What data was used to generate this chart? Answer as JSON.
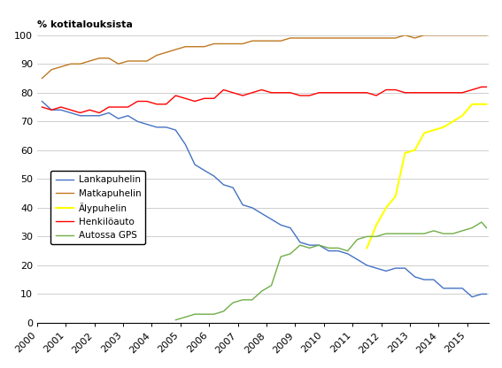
{
  "ylabel": "% kotitalouksista",
  "ylim": [
    0,
    100
  ],
  "yticks": [
    0,
    10,
    20,
    30,
    40,
    50,
    60,
    70,
    80,
    90,
    100
  ],
  "legend_labels": [
    "Lankapuhelin",
    "Matkapuhelin",
    "Älypuhelin",
    "Henkilöauto",
    "Autossa GPS"
  ],
  "line_colors": {
    "Lankapuhelin": "#4472c4",
    "Matkapuhelin": "#c07820",
    "Alypuhelin": "#ffff00",
    "Henkiloauto": "#ff0000",
    "AutossaGPS": "#70ad47"
  },
  "series": {
    "Lankapuhelin": {
      "x": [
        2000.17,
        2000.5,
        2000.83,
        2001.17,
        2001.5,
        2001.83,
        2002.17,
        2002.5,
        2002.83,
        2003.17,
        2003.5,
        2003.83,
        2004.17,
        2004.5,
        2004.83,
        2005.17,
        2005.5,
        2005.83,
        2006.17,
        2006.5,
        2006.83,
        2007.17,
        2007.5,
        2007.83,
        2008.17,
        2008.5,
        2008.83,
        2009.17,
        2009.5,
        2009.83,
        2010.17,
        2010.5,
        2010.83,
        2011.17,
        2011.5,
        2011.83,
        2012.17,
        2012.5,
        2012.83,
        2013.17,
        2013.5,
        2013.83,
        2014.17,
        2014.5,
        2014.83,
        2015.17,
        2015.5,
        2015.67
      ],
      "y": [
        77,
        74,
        74,
        73,
        72,
        72,
        72,
        73,
        71,
        72,
        70,
        69,
        68,
        68,
        67,
        62,
        55,
        53,
        51,
        48,
        47,
        41,
        40,
        38,
        36,
        34,
        33,
        28,
        27,
        27,
        25,
        25,
        24,
        22,
        20,
        19,
        18,
        19,
        19,
        16,
        15,
        15,
        12,
        12,
        12,
        9,
        10,
        10
      ]
    },
    "Matkapuhelin": {
      "x": [
        2000.17,
        2000.5,
        2000.83,
        2001.17,
        2001.5,
        2001.83,
        2002.17,
        2002.5,
        2002.83,
        2003.17,
        2003.5,
        2003.83,
        2004.17,
        2004.5,
        2004.83,
        2005.17,
        2005.5,
        2005.83,
        2006.17,
        2006.5,
        2006.83,
        2007.17,
        2007.5,
        2007.83,
        2008.17,
        2008.5,
        2008.83,
        2009.17,
        2009.5,
        2009.83,
        2010.17,
        2010.5,
        2010.83,
        2011.17,
        2011.5,
        2011.83,
        2012.17,
        2012.5,
        2012.83,
        2013.17,
        2013.5,
        2013.83,
        2014.17,
        2014.5,
        2014.83,
        2015.17,
        2015.5,
        2015.67
      ],
      "y": [
        85,
        88,
        89,
        90,
        90,
        91,
        92,
        92,
        90,
        91,
        91,
        91,
        93,
        94,
        95,
        96,
        96,
        96,
        97,
        97,
        97,
        97,
        98,
        98,
        98,
        98,
        99,
        99,
        99,
        99,
        99,
        99,
        99,
        99,
        99,
        99,
        99,
        99,
        100,
        99,
        100,
        100,
        100,
        100,
        100,
        100,
        100,
        100
      ]
    },
    "Alypuhelin": {
      "x": [
        2011.5,
        2011.83,
        2012.17,
        2012.5,
        2012.83,
        2013.17,
        2013.5,
        2013.83,
        2014.17,
        2014.5,
        2014.83,
        2015.17,
        2015.5,
        2015.67
      ],
      "y": [
        26,
        34,
        40,
        44,
        59,
        60,
        66,
        67,
        68,
        70,
        72,
        76,
        76,
        76
      ]
    },
    "Henkiloauto": {
      "x": [
        2000.17,
        2000.5,
        2000.83,
        2001.17,
        2001.5,
        2001.83,
        2002.17,
        2002.5,
        2002.83,
        2003.17,
        2003.5,
        2003.83,
        2004.17,
        2004.5,
        2004.83,
        2005.17,
        2005.5,
        2005.83,
        2006.17,
        2006.5,
        2006.83,
        2007.17,
        2007.5,
        2007.83,
        2008.17,
        2008.5,
        2008.83,
        2009.17,
        2009.5,
        2009.83,
        2010.17,
        2010.5,
        2010.83,
        2011.17,
        2011.5,
        2011.83,
        2012.17,
        2012.5,
        2012.83,
        2013.17,
        2013.5,
        2013.83,
        2014.17,
        2014.5,
        2014.83,
        2015.17,
        2015.5,
        2015.67
      ],
      "y": [
        75,
        74,
        75,
        74,
        73,
        74,
        73,
        75,
        75,
        75,
        77,
        77,
        76,
        76,
        79,
        78,
        77,
        78,
        78,
        81,
        80,
        79,
        80,
        81,
        80,
        80,
        80,
        79,
        79,
        80,
        80,
        80,
        80,
        80,
        80,
        79,
        81,
        81,
        80,
        80,
        80,
        80,
        80,
        80,
        80,
        81,
        82,
        82
      ]
    },
    "AutossaGPS": {
      "x": [
        2004.83,
        2005.17,
        2005.5,
        2005.83,
        2006.17,
        2006.5,
        2006.83,
        2007.17,
        2007.5,
        2007.83,
        2008.17,
        2008.5,
        2008.83,
        2009.17,
        2009.5,
        2009.83,
        2010.17,
        2010.5,
        2010.83,
        2011.17,
        2011.5,
        2011.83,
        2012.17,
        2012.5,
        2012.83,
        2013.17,
        2013.5,
        2013.83,
        2014.17,
        2014.5,
        2014.83,
        2015.17,
        2015.5,
        2015.67
      ],
      "y": [
        1,
        2,
        3,
        3,
        3,
        4,
        7,
        8,
        8,
        11,
        13,
        23,
        24,
        27,
        26,
        27,
        26,
        26,
        25,
        29,
        30,
        30,
        31,
        31,
        31,
        31,
        31,
        32,
        31,
        31,
        32,
        33,
        35,
        33
      ]
    }
  }
}
